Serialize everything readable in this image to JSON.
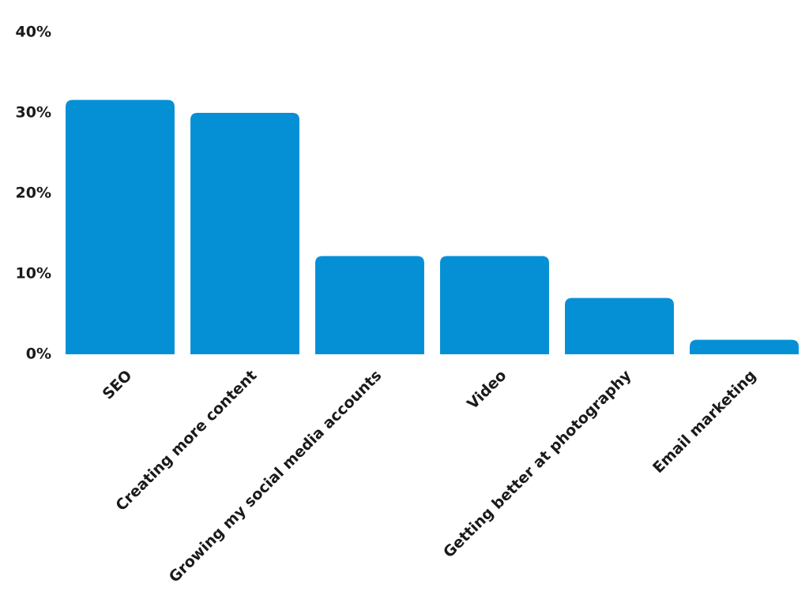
{
  "chart_data": {
    "type": "bar",
    "categories": [
      "SEO",
      "Creating more content",
      "Growing my social media accounts",
      "Video",
      "Getting better at photography",
      "Email marketing"
    ],
    "values": [
      31.6,
      30,
      12.2,
      12.2,
      7,
      1.8
    ],
    "color": "#0590d6",
    "ylim": [
      0,
      40
    ],
    "yticks": [
      {
        "value": 0,
        "label": "0%"
      },
      {
        "value": 10,
        "label": "10%"
      },
      {
        "value": 20,
        "label": "20%"
      },
      {
        "value": 30,
        "label": "30%"
      },
      {
        "value": 40,
        "label": "40%"
      }
    ],
    "grid": false
  }
}
